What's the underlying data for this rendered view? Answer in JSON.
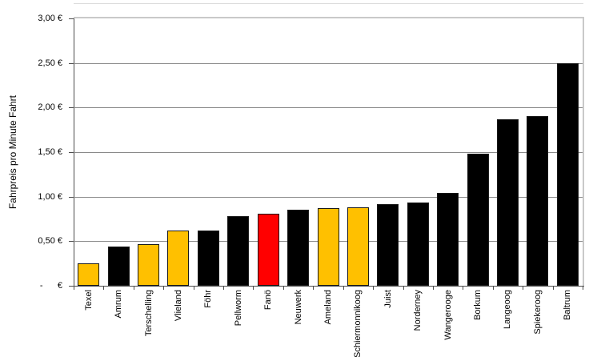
{
  "figure": {
    "background": "#FFFFFF"
  },
  "chart_data": {
    "type": "bar",
    "title": "",
    "xlabel": "",
    "ylabel": "Fahrpreis pro Minute Fahrt",
    "ylim": [
      0,
      3
    ],
    "grid": true,
    "legend_position": "none",
    "y_ticks": [
      {
        "value": 3.0,
        "label": "3,00 €"
      },
      {
        "value": 2.5,
        "label": "2,50 €"
      },
      {
        "value": 2.0,
        "label": "2,00 €"
      },
      {
        "value": 1.5,
        "label": "1,50 €"
      },
      {
        "value": 1.0,
        "label": "1,00 €"
      },
      {
        "value": 0.5,
        "label": "0,50 €"
      },
      {
        "value": 0.0,
        "label": "-      €"
      }
    ],
    "categories": [
      "Texel",
      "Amrum",
      "Terschelling",
      "Vlieland",
      "Föhr",
      "Pellworm",
      "Fanö",
      "Neuwerk",
      "Ameland",
      "Schiermonnikoog",
      "Juist",
      "Norderney",
      "Wangerooge",
      "Borkum",
      "Langeoog",
      "Spiekeroog",
      "Baltrum"
    ],
    "values": [
      0.25,
      0.44,
      0.47,
      0.62,
      0.62,
      0.78,
      0.81,
      0.85,
      0.87,
      0.88,
      0.92,
      0.93,
      1.04,
      1.48,
      1.87,
      1.9,
      2.5
    ],
    "bar_colors": [
      "#FFC000",
      "#000000",
      "#FFC000",
      "#FFC000",
      "#000000",
      "#000000",
      "#FF0000",
      "#000000",
      "#FFC000",
      "#FFC000",
      "#000000",
      "#000000",
      "#000000",
      "#000000",
      "#000000",
      "#000000",
      "#000000"
    ],
    "colors": {
      "bar_default": "#000000",
      "bar_highlight": "#FFC000",
      "bar_accent": "#FF0000",
      "bar_border": "#1A1A1A",
      "gridline": "#8A8A8A",
      "axis": "#4D4D4D",
      "plot_frame": "#C9C9C9",
      "text": "#000000"
    }
  }
}
